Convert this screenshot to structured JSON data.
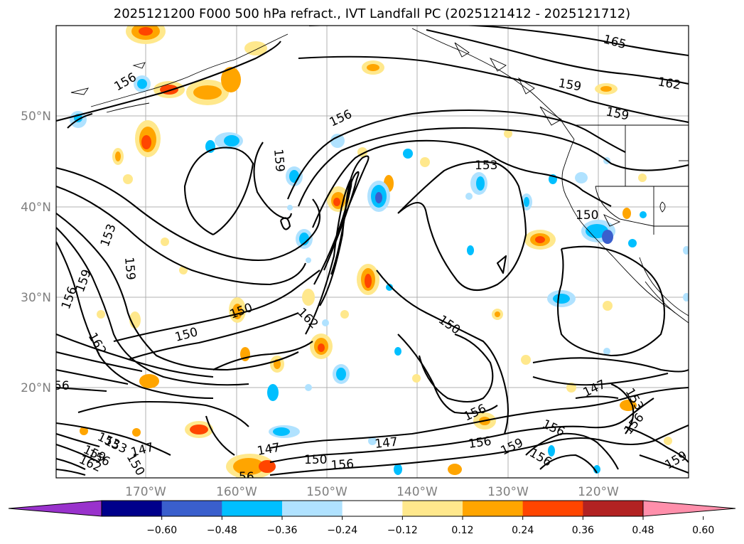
{
  "title": "2025121200 F000 500 hPa refract., IVT Landfall PC (2025121412 - 2025121712)",
  "axes": {
    "lat_labels": [
      "50°N",
      "40°N",
      "30°N",
      "20°N"
    ],
    "lon_labels": [
      "170°W",
      "160°W",
      "150°W",
      "140°W",
      "130°W",
      "120°W"
    ]
  },
  "contour_labels": [
    "165",
    "162",
    "159",
    "159",
    "159",
    "156",
    "156",
    "153",
    "150",
    "153",
    "159",
    "159",
    "156",
    "150",
    "150",
    "162",
    "150",
    "162",
    "147",
    "153",
    "156",
    "156",
    "156",
    "159",
    "156",
    "147",
    "147",
    "150",
    "156",
    "153",
    "162",
    "159",
    "156",
    "150",
    "147",
    "153",
    "156",
    "159",
    "56",
    "56"
  ],
  "colorbar": {
    "ticks": [
      "−0.60",
      "−0.48",
      "−0.36",
      "−0.24",
      "−0.12",
      "0.12",
      "0.24",
      "0.36",
      "0.48",
      "0.60"
    ],
    "colors": [
      "#9932cc",
      "#00008b",
      "#3a5fcd",
      "#00bfff",
      "#b0e2ff",
      "#ffffff",
      "#ffe88c",
      "#ffa500",
      "#ff4500",
      "#b22222",
      "#ff8fab"
    ]
  },
  "shading_colors": {
    "pos_light": "#ffe88c",
    "pos_mid": "#ffa500",
    "pos_strong": "#ff4500",
    "pos_max": "#b22222",
    "neg_light": "#b0e2ff",
    "neg_mid": "#00bfff",
    "neg_strong": "#3a5fcd",
    "neg_max": "#9932cc"
  }
}
